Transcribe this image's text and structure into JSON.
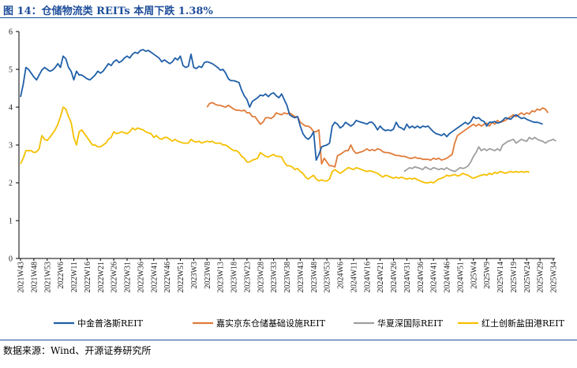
{
  "header": {
    "figure_label": "图 14：",
    "title_text": "仓储物流类 REITs 本周下跌 1.38%"
  },
  "footer": {
    "source": "数据来源：Wind、开源证券研究所"
  },
  "chart_data": {
    "type": "line",
    "title": "仓储物流类 REITs 本周下跌 1.38%",
    "xlabel": "",
    "ylabel": "",
    "ylim": [
      0,
      6
    ],
    "yticks": [
      0,
      1,
      2,
      3,
      4,
      5,
      6
    ],
    "grid": false,
    "legend_position": "bottom",
    "x_tick_labels": [
      "2021W43",
      "2021W48",
      "2021W53",
      "2022W6",
      "2022W11",
      "2022W16",
      "2022W21",
      "2022W26",
      "2022W31",
      "2022W36",
      "2022W41",
      "2022W46",
      "2022W51",
      "2023W3",
      "2023W8",
      "2023W13",
      "2023W18",
      "2023W23",
      "2023W28",
      "2023W33",
      "2023W38",
      "2023W43",
      "2023W48",
      "2023W53",
      "2024W6",
      "2024W11",
      "2024W16",
      "2024W21",
      "2024W26",
      "2024W31",
      "2024W36",
      "2024W41",
      "2024W46",
      "2024W51",
      "2025W4",
      "2025W9",
      "2025W14",
      "2025W19",
      "2025W24",
      "2025W29",
      "2025W34"
    ],
    "x_tick_indices": [
      0,
      5,
      10,
      15,
      20,
      25,
      30,
      35,
      40,
      45,
      50,
      55,
      60,
      65,
      70,
      75,
      80,
      85,
      90,
      95,
      100,
      105,
      110,
      115,
      120,
      125,
      130,
      135,
      140,
      145,
      150,
      155,
      160,
      165,
      170,
      175,
      180,
      185,
      190,
      195,
      200
    ],
    "series": [
      {
        "name": "中金普洛斯REIT",
        "color": "#1f5fa8",
        "start": 0,
        "values": [
          4.27,
          4.6,
          5.05,
          5.0,
          4.9,
          4.8,
          4.72,
          4.85,
          4.98,
          5.05,
          5.0,
          4.95,
          4.98,
          5.05,
          5.15,
          5.05,
          5.35,
          5.28,
          5.05,
          4.95,
          4.72,
          4.95,
          4.85,
          4.85,
          4.8,
          4.75,
          4.72,
          4.78,
          4.85,
          4.95,
          4.9,
          4.95,
          5.05,
          5.15,
          5.1,
          5.2,
          5.25,
          5.18,
          5.22,
          5.3,
          5.35,
          5.3,
          5.4,
          5.45,
          5.42,
          5.5,
          5.52,
          5.48,
          5.5,
          5.45,
          5.4,
          5.35,
          5.3,
          5.2,
          5.25,
          5.2,
          5.15,
          5.2,
          5.3,
          5.25,
          5.35,
          5.1,
          5.05,
          5.08,
          5.4,
          5.05,
          5.02,
          5.08,
          5.05,
          5.18,
          5.2,
          5.18,
          5.15,
          5.1,
          5.05,
          4.98,
          5.0,
          4.9,
          4.75,
          4.7,
          4.7,
          4.68,
          4.65,
          4.45,
          4.3,
          4.2,
          4.0,
          4.15,
          4.2,
          4.25,
          4.32,
          4.3,
          4.35,
          4.28,
          4.35,
          4.38,
          4.3,
          4.25,
          4.35,
          4.2,
          4.05,
          3.8,
          3.75,
          3.72,
          3.75,
          3.5,
          3.3,
          3.2,
          3.15,
          3.22,
          3.35,
          2.6,
          2.75,
          2.95,
          2.98,
          3.0,
          3.05,
          3.5,
          3.6,
          3.55,
          3.45,
          3.5,
          3.6,
          3.55,
          3.5,
          3.55,
          3.65,
          3.62,
          3.6,
          3.58,
          3.55,
          3.6,
          3.6,
          3.52,
          3.4,
          3.5,
          3.42,
          3.38,
          3.4,
          3.38,
          3.42,
          3.6,
          3.48,
          3.45,
          3.4,
          3.55,
          3.45,
          3.5,
          3.45,
          3.5,
          3.45,
          3.5,
          3.48,
          3.5,
          3.42,
          3.35,
          3.3,
          3.28,
          3.25,
          3.3,
          3.22,
          3.3,
          3.35,
          3.4,
          3.45,
          3.5,
          3.55,
          3.6,
          3.55,
          3.62,
          3.75,
          3.7,
          3.72,
          3.65,
          3.62,
          3.5,
          3.6,
          3.6,
          3.62,
          3.58,
          3.6,
          3.65,
          3.72,
          3.7,
          3.68,
          3.75,
          3.8,
          3.75,
          3.7,
          3.72,
          3.68,
          3.65,
          3.62,
          3.6,
          3.6,
          3.58,
          3.55
        ]
      },
      {
        "name": "嘉实京东仓储基础设施REIT",
        "color": "#e07b39",
        "start": 70,
        "values": [
          4.0,
          4.1,
          4.12,
          4.08,
          4.05,
          4.05,
          4.02,
          4.0,
          4.05,
          4.0,
          3.95,
          3.92,
          3.92,
          3.9,
          3.92,
          3.85,
          3.85,
          3.75,
          3.75,
          3.65,
          3.55,
          3.6,
          3.72,
          3.72,
          3.7,
          3.75,
          3.85,
          3.82,
          3.8,
          3.85,
          3.82,
          3.85,
          3.8,
          3.75,
          3.75,
          3.6,
          3.55,
          3.5,
          3.5,
          3.45,
          3.35,
          3.35,
          3.4,
          2.5,
          2.65,
          2.55,
          2.45,
          2.45,
          2.42,
          2.72,
          2.75,
          2.8,
          2.85,
          2.85,
          3.0,
          2.85,
          2.78,
          2.8,
          2.82,
          2.85,
          2.9,
          2.85,
          2.88,
          2.85,
          2.9,
          2.88,
          2.82,
          2.8,
          2.8,
          2.78,
          2.75,
          2.72,
          2.72,
          2.7,
          2.7,
          2.68,
          2.65,
          2.65,
          2.68,
          2.65,
          2.65,
          2.62,
          2.62,
          2.62,
          2.6,
          2.65,
          2.62,
          2.65,
          2.6,
          2.62,
          2.65,
          2.7,
          2.75,
          3.05,
          3.25,
          3.3,
          3.35,
          3.4,
          3.45,
          3.5,
          3.55,
          3.5,
          3.55,
          3.5,
          3.55,
          3.58,
          3.5,
          3.6,
          3.55,
          3.65,
          3.6,
          3.62,
          3.65,
          3.7,
          3.75,
          3.8,
          3.75,
          3.8,
          3.85,
          3.8,
          3.85,
          3.82,
          3.9,
          3.88,
          3.95,
          3.92,
          3.98,
          3.95,
          3.85
        ]
      },
      {
        "name": "华夏深国际REIT",
        "color": "#9e9e9e",
        "start": 144,
        "values": [
          2.3,
          2.35,
          2.4,
          2.38,
          2.42,
          2.4,
          2.38,
          2.35,
          2.42,
          2.38,
          2.35,
          2.4,
          2.38,
          2.35,
          2.38,
          2.35,
          2.4,
          2.35,
          2.32,
          2.3,
          2.35,
          2.4,
          2.38,
          2.4,
          2.45,
          2.55,
          2.7,
          2.8,
          2.95,
          2.85,
          2.9,
          2.85,
          2.9,
          2.88,
          2.85,
          2.9,
          2.85,
          3.0,
          3.05,
          3.1,
          3.12,
          3.15,
          3.05,
          3.1,
          3.15,
          3.12,
          3.1,
          3.2,
          3.15,
          3.2,
          3.15,
          3.12,
          3.1,
          3.05,
          3.1,
          3.12,
          3.15,
          3.1
        ]
      },
      {
        "name": "红土创新盐田港REIT",
        "color": "#f5c000",
        "start": 0,
        "values": [
          2.5,
          2.65,
          2.85,
          2.85,
          2.85,
          2.8,
          2.82,
          2.9,
          3.25,
          3.15,
          3.12,
          3.2,
          3.3,
          3.4,
          3.55,
          3.75,
          4.0,
          3.95,
          3.75,
          3.6,
          3.2,
          3.0,
          3.35,
          3.4,
          3.3,
          3.2,
          3.1,
          3.0,
          3.0,
          2.95,
          2.95,
          3.0,
          3.05,
          3.15,
          3.2,
          3.35,
          3.3,
          3.32,
          3.35,
          3.32,
          3.3,
          3.35,
          3.45,
          3.4,
          3.45,
          3.42,
          3.4,
          3.35,
          3.32,
          3.3,
          3.2,
          3.25,
          3.18,
          3.15,
          3.2,
          3.2,
          3.15,
          3.1,
          3.15,
          3.1,
          3.08,
          3.05,
          3.05,
          3.05,
          3.15,
          3.1,
          3.08,
          3.1,
          3.05,
          3.08,
          3.1,
          3.08,
          3.1,
          3.05,
          3.05,
          3.05,
          3.0,
          3.0,
          2.95,
          2.9,
          2.85,
          2.85,
          2.8,
          2.7,
          2.65,
          2.55,
          2.55,
          2.6,
          2.62,
          2.65,
          2.8,
          2.75,
          2.7,
          2.68,
          2.72,
          2.75,
          2.7,
          2.7,
          2.68,
          2.55,
          2.45,
          2.45,
          2.42,
          2.35,
          2.38,
          2.3,
          2.25,
          2.15,
          2.1,
          2.15,
          2.2,
          2.1,
          2.05,
          2.08,
          2.05,
          2.05,
          2.1,
          2.3,
          2.35,
          2.3,
          2.25,
          2.3,
          2.35,
          2.4,
          2.38,
          2.35,
          2.4,
          2.38,
          2.35,
          2.32,
          2.3,
          2.32,
          2.3,
          2.28,
          2.25,
          2.2,
          2.15,
          2.2,
          2.18,
          2.15,
          2.12,
          2.15,
          2.12,
          2.15,
          2.12,
          2.1,
          2.12,
          2.1,
          2.12,
          2.08,
          2.05,
          2.02,
          2.0,
          2.0,
          2.02,
          2.0,
          2.05,
          2.1,
          2.12,
          2.15,
          2.2,
          2.18,
          2.2,
          2.22,
          2.18,
          2.2,
          2.25,
          2.22,
          2.2,
          2.15,
          2.12,
          2.15,
          2.18,
          2.2,
          2.22,
          2.2,
          2.25,
          2.22,
          2.28,
          2.25,
          2.3,
          2.28,
          2.25,
          2.28,
          2.3,
          2.28,
          2.3,
          2.28,
          2.3,
          2.28,
          2.3,
          2.28
        ]
      }
    ]
  }
}
